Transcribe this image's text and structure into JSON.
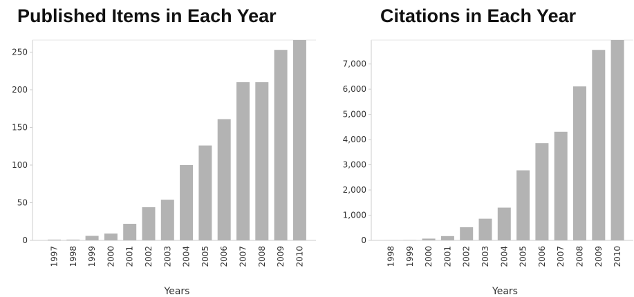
{
  "colors": {
    "bar": "#b3b3b3",
    "axis": "#cccccc",
    "text": "#333333"
  },
  "chart_data": [
    {
      "type": "bar",
      "title": "Published Items in Each Year",
      "xlabel": "Years",
      "ylabel": "",
      "categories": [
        "1997",
        "1998",
        "1999",
        "2000",
        "2001",
        "2002",
        "2003",
        "2004",
        "2005",
        "2006",
        "2007",
        "2008",
        "2009",
        "2010"
      ],
      "values": [
        1,
        1,
        6,
        9,
        22,
        44,
        54,
        100,
        126,
        161,
        210,
        210,
        253,
        266
      ],
      "ylim": [
        0,
        266
      ],
      "yticks": [
        0,
        50,
        100,
        150,
        200,
        250
      ],
      "ytick_labels": [
        "0",
        "50",
        "100",
        "150",
        "200",
        "250"
      ],
      "grid": false
    },
    {
      "type": "bar",
      "title": "Citations in Each Year",
      "xlabel": "Years",
      "ylabel": "",
      "categories": [
        "1998",
        "1999",
        "2000",
        "2001",
        "2002",
        "2003",
        "2004",
        "2005",
        "2006",
        "2007",
        "2008",
        "2009",
        "2010"
      ],
      "values": [
        5,
        15,
        70,
        170,
        520,
        860,
        1300,
        2780,
        3860,
        4310,
        6110,
        7560,
        7950
      ],
      "ylim": [
        0,
        7950
      ],
      "yticks": [
        0,
        1000,
        2000,
        3000,
        4000,
        5000,
        6000,
        7000
      ],
      "ytick_labels": [
        "0",
        "1,000",
        "2,000",
        "3,000",
        "4,000",
        "5,000",
        "6,000",
        "7,000"
      ],
      "grid": false
    }
  ]
}
